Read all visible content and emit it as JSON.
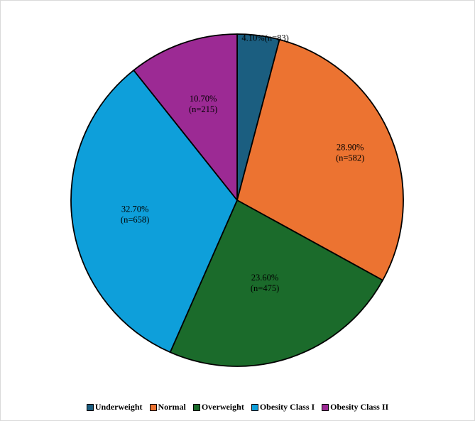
{
  "chart_data": {
    "type": "pie",
    "title": "",
    "categories": [
      "Underweight",
      "Normal",
      "Overweight",
      "Obesity Class I",
      "Obesity Class II"
    ],
    "values": [
      4.1,
      28.9,
      23.6,
      32.7,
      10.7
    ],
    "counts": [
      83,
      582,
      475,
      658,
      215
    ],
    "labels": [
      {
        "pct": "4.10%",
        "n": "(n=83)"
      },
      {
        "pct": "28.90%",
        "n": "(n=582)"
      },
      {
        "pct": "23.60%",
        "n": "(n=475)"
      },
      {
        "pct": "32.70%",
        "n": "(n=658)"
      },
      {
        "pct": "10.70%",
        "n": "(n=215)"
      }
    ],
    "colors": [
      "#1b5e80",
      "#ec7331",
      "#1b6b2b",
      "#0e9fda",
      "#9c2a94"
    ],
    "start_angle": "12 o'clock",
    "direction": "clockwise",
    "legend": {
      "placement": "bottom",
      "items": [
        "Underweight",
        "Normal",
        "Overweight",
        "Obesity Class I",
        "Obesity Class II"
      ]
    }
  }
}
